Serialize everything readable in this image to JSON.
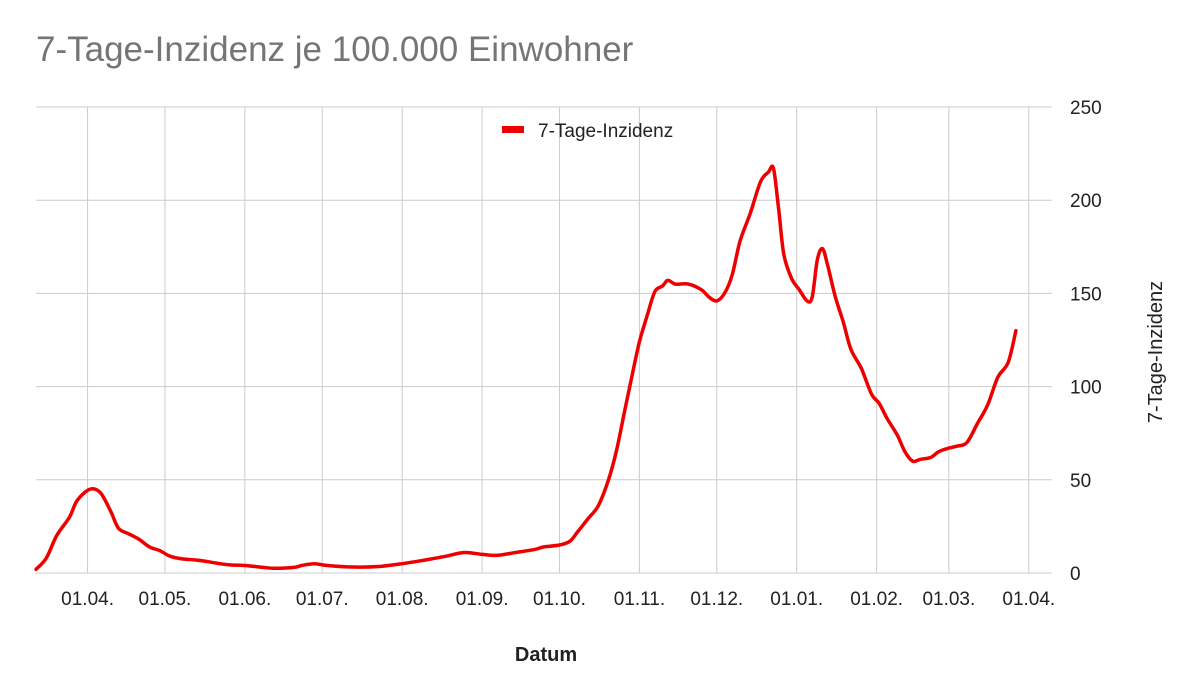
{
  "chart_data": {
    "type": "line",
    "title": "7-Tage-Inzidenz je 100.000 Einwohner",
    "xlabel": "Datum",
    "ylabel": "7-Tage-Inzidenz",
    "ylim": [
      0,
      250
    ],
    "y_axis_side": "right",
    "grid": true,
    "legend_position": "top-center",
    "colors": {
      "series": "#ee0000",
      "grid": "#cccccc",
      "title": "#757575"
    },
    "x_ticks": [
      {
        "date": "2020-04-01",
        "label": "01.04."
      },
      {
        "date": "2020-05-01",
        "label": "01.05."
      },
      {
        "date": "2020-06-01",
        "label": "01.06."
      },
      {
        "date": "2020-07-01",
        "label": "01.07."
      },
      {
        "date": "2020-08-01",
        "label": "01.08."
      },
      {
        "date": "2020-09-01",
        "label": "01.09."
      },
      {
        "date": "2020-10-01",
        "label": "01.10."
      },
      {
        "date": "2020-11-01",
        "label": "01.11."
      },
      {
        "date": "2020-12-01",
        "label": "01.12."
      },
      {
        "date": "2021-01-01",
        "label": "01.01."
      },
      {
        "date": "2021-02-01",
        "label": "01.02."
      },
      {
        "date": "2021-03-01",
        "label": "01.03."
      },
      {
        "date": "2021-04-01",
        "label": "01.04."
      }
    ],
    "y_ticks": [
      0,
      50,
      100,
      150,
      200,
      250
    ],
    "xlim": [
      "2020-03-12",
      "2021-04-10"
    ],
    "series": [
      {
        "name": "7-Tage-Inzidenz",
        "points": [
          [
            "2020-03-12",
            2
          ],
          [
            "2020-03-16",
            8
          ],
          [
            "2020-03-20",
            20
          ],
          [
            "2020-03-25",
            30
          ],
          [
            "2020-03-28",
            39
          ],
          [
            "2020-04-02",
            45
          ],
          [
            "2020-04-06",
            43
          ],
          [
            "2020-04-10",
            33
          ],
          [
            "2020-04-13",
            24
          ],
          [
            "2020-04-17",
            21
          ],
          [
            "2020-04-21",
            18
          ],
          [
            "2020-04-25",
            14
          ],
          [
            "2020-04-29",
            12
          ],
          [
            "2020-05-03",
            9
          ],
          [
            "2020-05-08",
            7.5
          ],
          [
            "2020-05-13",
            7
          ],
          [
            "2020-05-18",
            6
          ],
          [
            "2020-05-25",
            4.5
          ],
          [
            "2020-06-01",
            4
          ],
          [
            "2020-06-08",
            3
          ],
          [
            "2020-06-13",
            2.5
          ],
          [
            "2020-06-20",
            3
          ],
          [
            "2020-06-23",
            4
          ],
          [
            "2020-06-28",
            5
          ],
          [
            "2020-07-03",
            4
          ],
          [
            "2020-07-13",
            3.2
          ],
          [
            "2020-07-23",
            3.5
          ],
          [
            "2020-08-01",
            5
          ],
          [
            "2020-08-10",
            7
          ],
          [
            "2020-08-18",
            9
          ],
          [
            "2020-08-25",
            11
          ],
          [
            "2020-09-01",
            10
          ],
          [
            "2020-09-07",
            9.5
          ],
          [
            "2020-09-14",
            11
          ],
          [
            "2020-09-21",
            12.5
          ],
          [
            "2020-09-25",
            14
          ],
          [
            "2020-10-01",
            15
          ],
          [
            "2020-10-05",
            17
          ],
          [
            "2020-10-08",
            22
          ],
          [
            "2020-10-12",
            29
          ],
          [
            "2020-10-16",
            36
          ],
          [
            "2020-10-20",
            50
          ],
          [
            "2020-10-23",
            65
          ],
          [
            "2020-10-26",
            85
          ],
          [
            "2020-10-29",
            105
          ],
          [
            "2020-11-01",
            124
          ],
          [
            "2020-11-04",
            138
          ],
          [
            "2020-11-07",
            151
          ],
          [
            "2020-11-10",
            154
          ],
          [
            "2020-11-12",
            157
          ],
          [
            "2020-11-15",
            155
          ],
          [
            "2020-11-20",
            155
          ],
          [
            "2020-11-25",
            152
          ],
          [
            "2020-11-28",
            148
          ],
          [
            "2020-12-01",
            146
          ],
          [
            "2020-12-04",
            150
          ],
          [
            "2020-12-07",
            160
          ],
          [
            "2020-12-10",
            178
          ],
          [
            "2020-12-14",
            193
          ],
          [
            "2020-12-18",
            210
          ],
          [
            "2020-12-21",
            215
          ],
          [
            "2020-12-23",
            217
          ],
          [
            "2020-12-25",
            195
          ],
          [
            "2020-12-27",
            171
          ],
          [
            "2020-12-30",
            158
          ],
          [
            "2021-01-02",
            152
          ],
          [
            "2021-01-05",
            146
          ],
          [
            "2021-01-07",
            148
          ],
          [
            "2021-01-09",
            168
          ],
          [
            "2021-01-11",
            174
          ],
          [
            "2021-01-13",
            165
          ],
          [
            "2021-01-16",
            148
          ],
          [
            "2021-01-19",
            135
          ],
          [
            "2021-01-22",
            120
          ],
          [
            "2021-01-26",
            110
          ],
          [
            "2021-01-30",
            96
          ],
          [
            "2021-02-02",
            91
          ],
          [
            "2021-02-05",
            83
          ],
          [
            "2021-02-09",
            74
          ],
          [
            "2021-02-12",
            65
          ],
          [
            "2021-02-15",
            60
          ],
          [
            "2021-02-18",
            61
          ],
          [
            "2021-02-22",
            62
          ],
          [
            "2021-02-25",
            65
          ],
          [
            "2021-03-01",
            67
          ],
          [
            "2021-03-04",
            68
          ],
          [
            "2021-03-08",
            70
          ],
          [
            "2021-03-12",
            80
          ],
          [
            "2021-03-16",
            90
          ],
          [
            "2021-03-20",
            105
          ],
          [
            "2021-03-24",
            113
          ],
          [
            "2021-03-27",
            130
          ]
        ]
      }
    ]
  }
}
